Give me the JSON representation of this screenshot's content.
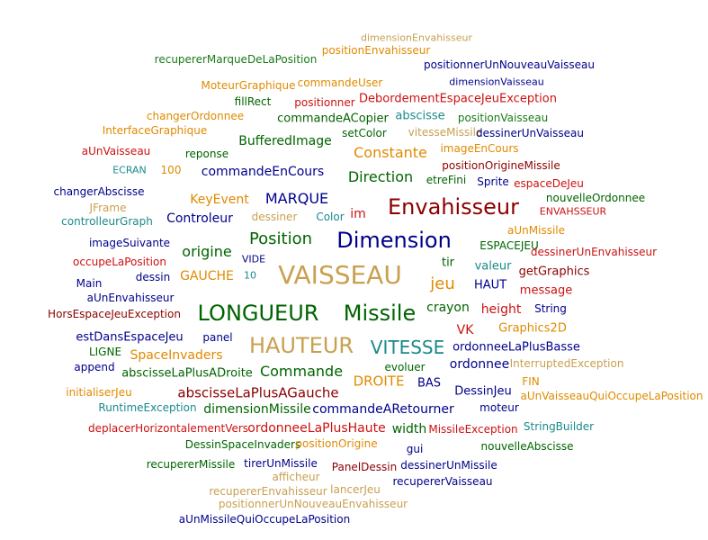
{
  "colors": {
    "green": "#1a7a1a",
    "darkblue": "#1a1a8c",
    "red": "#cc1111",
    "darkred": "#8b0000",
    "orange": "#e08a00",
    "tan": "#c8a050",
    "teal": "#1a8a8a",
    "navy": "#00008b",
    "darkgreen": "#006400"
  },
  "words": [
    {
      "text": "dimensionEnvahisseur",
      "color": "tan"
    },
    {
      "text": "positionEnvahisseur",
      "color": "orange"
    },
    {
      "text": "recupererMarqueDeLaPosition",
      "color": "green"
    },
    {
      "text": "positionnerUnNouveauVaisseau",
      "color": "navy"
    },
    {
      "text": "MoteurGraphique",
      "color": "orange"
    },
    {
      "text": "commandeUser",
      "color": "orange"
    },
    {
      "text": "dimensionVaisseau",
      "color": "navy"
    },
    {
      "text": "fillRect",
      "color": "darkgreen"
    },
    {
      "text": "positionner",
      "color": "red"
    },
    {
      "text": "DebordementEspaceJeuException",
      "color": "red"
    },
    {
      "text": "changerOrdonnee",
      "color": "orange"
    },
    {
      "text": "commandeACopier",
      "color": "darkgreen"
    },
    {
      "text": "abscisse",
      "color": "teal"
    },
    {
      "text": "positionVaisseau",
      "color": "green"
    },
    {
      "text": "InterfaceGraphique",
      "color": "orange"
    },
    {
      "text": "setColor",
      "color": "darkgreen"
    },
    {
      "text": "vitesseMissile",
      "color": "tan"
    },
    {
      "text": "dessinerUnVaisseau",
      "color": "navy"
    },
    {
      "text": "BufferedImage",
      "color": "darkgreen"
    },
    {
      "text": "aUnVaisseau",
      "color": "red"
    },
    {
      "text": "reponse",
      "color": "darkgreen"
    },
    {
      "text": "Constante",
      "color": "orange"
    },
    {
      "text": "imageEnCours",
      "color": "orange"
    },
    {
      "text": "positionOrigineMissile",
      "color": "darkred"
    },
    {
      "text": "ECRAN",
      "color": "teal"
    },
    {
      "text": "100",
      "color": "orange"
    },
    {
      "text": "commandeEnCours",
      "color": "navy"
    },
    {
      "text": "Direction",
      "color": "darkgreen"
    },
    {
      "text": "etreFini",
      "color": "darkgreen"
    },
    {
      "text": "Sprite",
      "color": "navy"
    },
    {
      "text": "espaceDeJeu",
      "color": "red"
    },
    {
      "text": "changerAbscisse",
      "color": "navy"
    },
    {
      "text": "KeyEvent",
      "color": "orange"
    },
    {
      "text": "MARQUE",
      "color": "navy"
    },
    {
      "text": "Envahisseur",
      "color": "darkred"
    },
    {
      "text": "nouvelleOrdonnee",
      "color": "darkgreen"
    },
    {
      "text": "JFrame",
      "color": "tan"
    },
    {
      "text": "ENVAHSSEUR",
      "color": "red"
    },
    {
      "text": "controlleurGraph",
      "color": "teal"
    },
    {
      "text": "Controleur",
      "color": "navy"
    },
    {
      "text": "dessiner",
      "color": "tan"
    },
    {
      "text": "Color",
      "color": "teal"
    },
    {
      "text": "im",
      "color": "red"
    },
    {
      "text": "aUnMissile",
      "color": "orange"
    },
    {
      "text": "Position",
      "color": "darkgreen"
    },
    {
      "text": "Dimension",
      "color": "navy"
    },
    {
      "text": "imageSuivante",
      "color": "navy"
    },
    {
      "text": "ESPACEJEU",
      "color": "darkgreen"
    },
    {
      "text": "dessinerUnEnvahisseur",
      "color": "red"
    },
    {
      "text": "origine",
      "color": "darkgreen"
    },
    {
      "text": "occupeLaPosition",
      "color": "red"
    },
    {
      "text": "VIDE",
      "color": "navy"
    },
    {
      "text": "tir",
      "color": "darkgreen"
    },
    {
      "text": "valeur",
      "color": "teal"
    },
    {
      "text": "getGraphics",
      "color": "darkred"
    },
    {
      "text": "dessin",
      "color": "navy"
    },
    {
      "text": "GAUCHE",
      "color": "orange"
    },
    {
      "text": "10",
      "color": "teal"
    },
    {
      "text": "VAISSEAU",
      "color": "tan"
    },
    {
      "text": "jeu",
      "color": "orange"
    },
    {
      "text": "HAUT",
      "color": "navy"
    },
    {
      "text": "Main",
      "color": "navy"
    },
    {
      "text": "message",
      "color": "red"
    },
    {
      "text": "aUnEnvahisseur",
      "color": "navy"
    },
    {
      "text": "LONGUEUR",
      "color": "darkgreen"
    },
    {
      "text": "Missile",
      "color": "darkgreen"
    },
    {
      "text": "crayon",
      "color": "darkgreen"
    },
    {
      "text": "height",
      "color": "red"
    },
    {
      "text": "String",
      "color": "navy"
    },
    {
      "text": "HorsEspaceJeuException",
      "color": "darkred"
    },
    {
      "text": "VK",
      "color": "red"
    },
    {
      "text": "Graphics2D",
      "color": "orange"
    },
    {
      "text": "estDansEspaceJeu",
      "color": "navy"
    },
    {
      "text": "panel",
      "color": "navy"
    },
    {
      "text": "HAUTEUR",
      "color": "tan"
    },
    {
      "text": "VITESSE",
      "color": "teal"
    },
    {
      "text": "ordonneeLaPlusBasse",
      "color": "navy"
    },
    {
      "text": "LIGNE",
      "color": "darkgreen"
    },
    {
      "text": "SpaceInvaders",
      "color": "orange"
    },
    {
      "text": "append",
      "color": "navy"
    },
    {
      "text": "InterruptedException",
      "color": "tan"
    },
    {
      "text": "abscisseLaPlusADroite",
      "color": "darkgreen"
    },
    {
      "text": "Commande",
      "color": "darkgreen"
    },
    {
      "text": "evoluer",
      "color": "darkgreen"
    },
    {
      "text": "ordonnee",
      "color": "navy"
    },
    {
      "text": "DROITE",
      "color": "orange"
    },
    {
      "text": "BAS",
      "color": "navy"
    },
    {
      "text": "FIN",
      "color": "orange"
    },
    {
      "text": "initialiserJeu",
      "color": "orange"
    },
    {
      "text": "abscisseLaPlusAGauche",
      "color": "darkred"
    },
    {
      "text": "DessinJeu",
      "color": "navy"
    },
    {
      "text": "aUnVaisseauQuiOccupeLaPosition",
      "color": "orange"
    },
    {
      "text": "RuntimeException",
      "color": "teal"
    },
    {
      "text": "dimensionMissile",
      "color": "darkgreen"
    },
    {
      "text": "commandeARetourner",
      "color": "navy"
    },
    {
      "text": "moteur",
      "color": "navy"
    },
    {
      "text": "deplacerHorizontalementVers",
      "color": "red"
    },
    {
      "text": "ordonneeLaPlusHaute",
      "color": "red"
    },
    {
      "text": "width",
      "color": "darkgreen"
    },
    {
      "text": "MissileException",
      "color": "red"
    },
    {
      "text": "StringBuilder",
      "color": "teal"
    },
    {
      "text": "DessinSpaceInvaders",
      "color": "darkgreen"
    },
    {
      "text": "positionOrigine",
      "color": "orange"
    },
    {
      "text": "gui",
      "color": "navy"
    },
    {
      "text": "nouvelleAbscisse",
      "color": "darkgreen"
    },
    {
      "text": "recupererMissile",
      "color": "darkgreen"
    },
    {
      "text": "tirerUnMissile",
      "color": "navy"
    },
    {
      "text": "PanelDessin",
      "color": "darkred"
    },
    {
      "text": "dessinerUnMissile",
      "color": "navy"
    },
    {
      "text": "afficheur",
      "color": "tan"
    },
    {
      "text": "recupererVaisseau",
      "color": "navy"
    },
    {
      "text": "recupererEnvahisseur",
      "color": "tan"
    },
    {
      "text": "lancerJeu",
      "color": "tan"
    },
    {
      "text": "positionnerUnNouveauEnvahisseur",
      "color": "tan"
    },
    {
      "text": "aUnMissileQuiOccupeLaPosition",
      "color": "navy"
    }
  ]
}
